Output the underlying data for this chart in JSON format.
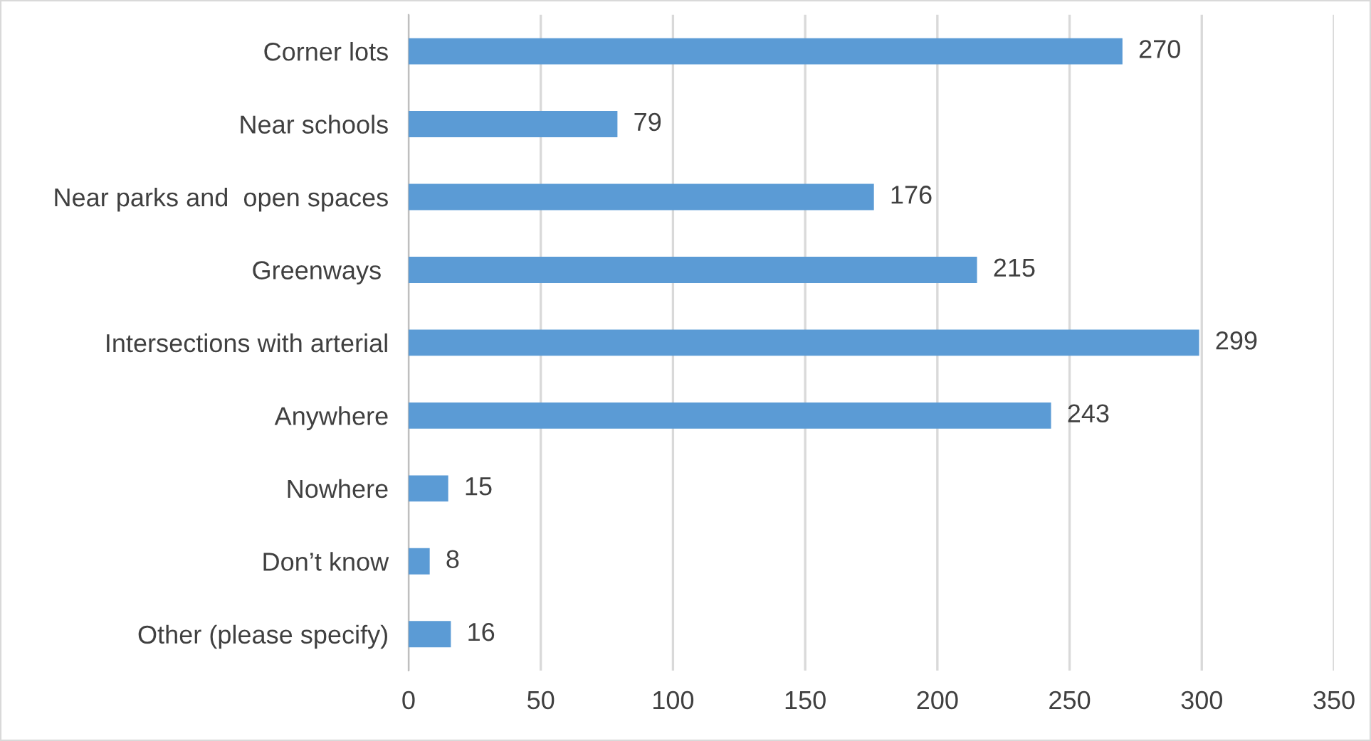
{
  "chart_data": {
    "type": "bar",
    "orientation": "horizontal",
    "categories": [
      "Corner lots",
      "Near schools",
      "Near parks and  open spaces",
      "Greenways ",
      "Intersections with arterial",
      "Anywhere",
      "Nowhere",
      "Don’t know",
      "Other (please specify)"
    ],
    "values": [
      270,
      79,
      176,
      215,
      299,
      243,
      15,
      8,
      16
    ],
    "color": "#5b9bd5",
    "xlim": [
      0,
      350
    ],
    "xticks": [
      0,
      50,
      100,
      150,
      200,
      250,
      300,
      350
    ],
    "grid": "x",
    "data_labels": true
  }
}
